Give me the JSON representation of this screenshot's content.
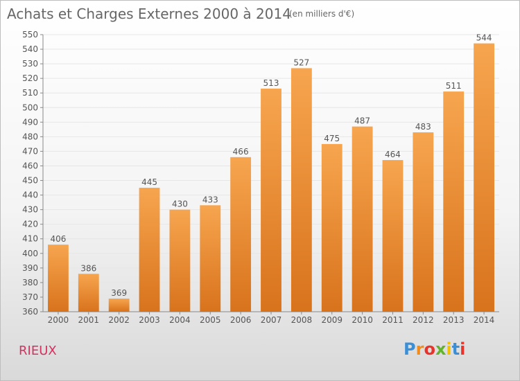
{
  "header": {
    "title": "Achats et Charges Externes 2000 à 2014",
    "subtitle": "(en milliers d'€)"
  },
  "footer": {
    "place": "RIEUX",
    "logo_text": "Proxiti"
  },
  "colors": {
    "bar_light": "#f7a54f",
    "bar_dark": "#d8731c",
    "grid": "#e6e6e6",
    "axis_text": "#555555",
    "place": "#d3315e"
  },
  "chart_data": {
    "type": "bar",
    "title": "Achats et Charges Externes 2000 à 2014",
    "subtitle": "(en milliers d'€)",
    "xlabel": "",
    "ylabel": "",
    "categories": [
      "2000",
      "2001",
      "2002",
      "2003",
      "2004",
      "2005",
      "2006",
      "2007",
      "2008",
      "2009",
      "2010",
      "2011",
      "2012",
      "2013",
      "2014"
    ],
    "values": [
      406,
      386,
      369,
      445,
      430,
      433,
      466,
      513,
      527,
      475,
      487,
      464,
      483,
      511,
      544
    ],
    "ylim": [
      360,
      550
    ],
    "ytick_step": 10,
    "grid": true,
    "data_labels": true,
    "legend": "none"
  }
}
